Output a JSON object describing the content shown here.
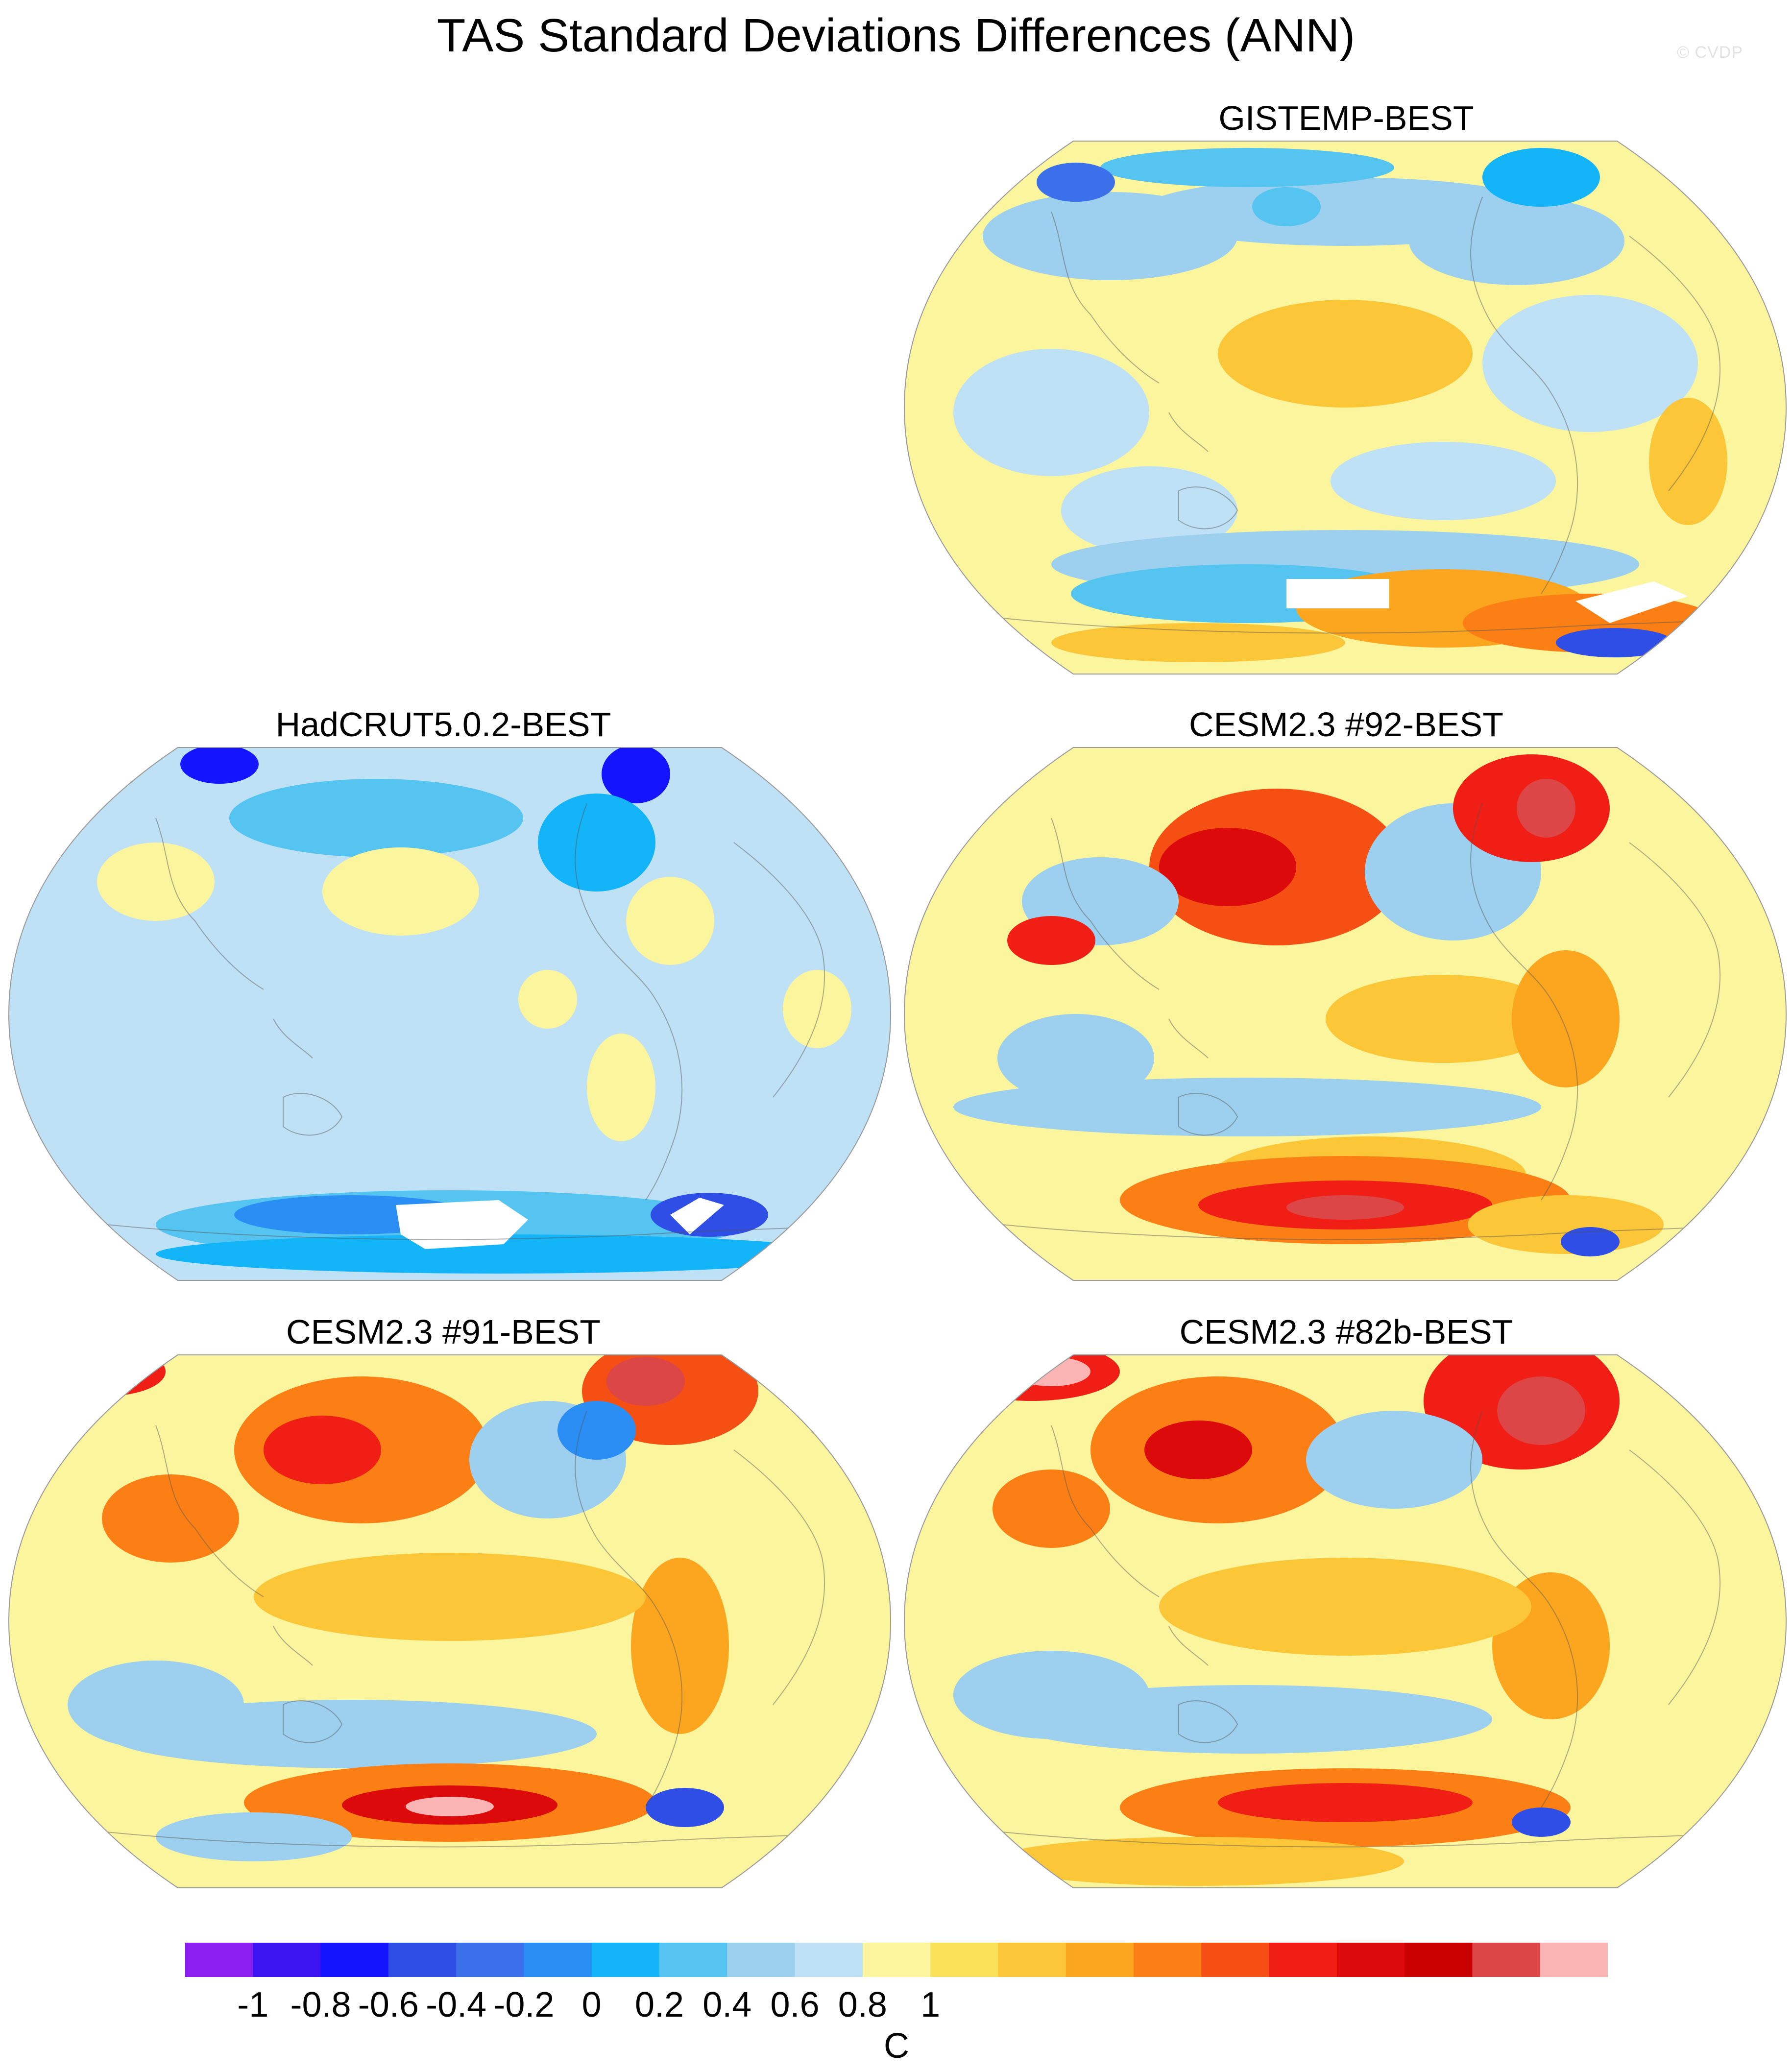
{
  "title": "TAS Standard Deviations Differences (ANN)",
  "watermark": "© CVDP",
  "panels": [
    {
      "id": "gistemp",
      "label": "GISTEMP-BEST",
      "base": "#fbf59e"
    },
    {
      "id": "hadcrut",
      "label": "HadCRUT5.0.2-BEST",
      "base": "#bfe1f5"
    },
    {
      "id": "cesm92",
      "label": "CESM2.3 #92-BEST",
      "base": "#fbf59e"
    },
    {
      "id": "cesm91",
      "label": "CESM2.3 #91-BEST",
      "base": "#fbf59e"
    },
    {
      "id": "cesm82b",
      "label": "CESM2.3 #82b-BEST",
      "base": "#fbf59e"
    }
  ],
  "colorbar": {
    "units": "C",
    "tick_labels": [
      "-1",
      "-0.8",
      "-0.6",
      "-0.4",
      "-0.2",
      "0",
      "0.2",
      "0.4",
      "0.6",
      "0.8",
      "1"
    ],
    "colors": [
      "#8b1ef0",
      "#3c14f0",
      "#1414ff",
      "#2f4ee6",
      "#3b70ea",
      "#2a8ef5",
      "#14b4f8",
      "#55c4f0",
      "#9dd0ee",
      "#bfe1f5",
      "#fbf59e",
      "#fbe15a",
      "#fbc637",
      "#fba61e",
      "#fb7f14",
      "#f64f14",
      "#f01e14",
      "#dc0a0a",
      "#c80000",
      "#dc4646",
      "#fbb4b4"
    ]
  },
  "chart_data": {
    "type": "heatmap",
    "title": "TAS Standard Deviations Differences (ANN)",
    "projection": "Robinson-like global maps (Pacific-centered)",
    "colorbar_levels": [
      -1.1,
      -1.0,
      -0.9,
      -0.8,
      -0.7,
      -0.6,
      -0.5,
      -0.4,
      -0.3,
      -0.2,
      -0.1,
      0,
      0.1,
      0.2,
      0.3,
      0.4,
      0.5,
      0.6,
      0.7,
      0.8,
      0.9,
      1.0,
      1.1
    ],
    "units": "C",
    "panels": [
      {
        "name": "GISTEMP-BEST",
        "typical_range": [
          -0.7,
          0.4
        ],
        "dominant": "near zero, mixed ±0.2"
      },
      {
        "name": "HadCRUT5.0.2-BEST",
        "typical_range": [
          -1.0,
          0.1
        ],
        "dominant": "slightly negative (-0.1 to 0)"
      },
      {
        "name": "CESM2.3 #92-BEST",
        "typical_range": [
          -0.6,
          1.1
        ],
        "dominant": "positive, max over North Pacific and Southern Ocean"
      },
      {
        "name": "CESM2.3 #91-BEST",
        "typical_range": [
          -0.6,
          1.1
        ],
        "dominant": "positive, max over North Pacific, N. Atlantic and Southern Ocean"
      },
      {
        "name": "CESM2.3 #82b-BEST",
        "typical_range": [
          -0.6,
          1.1
        ],
        "dominant": "positive, max over North Atlantic and Southern Ocean"
      }
    ]
  }
}
